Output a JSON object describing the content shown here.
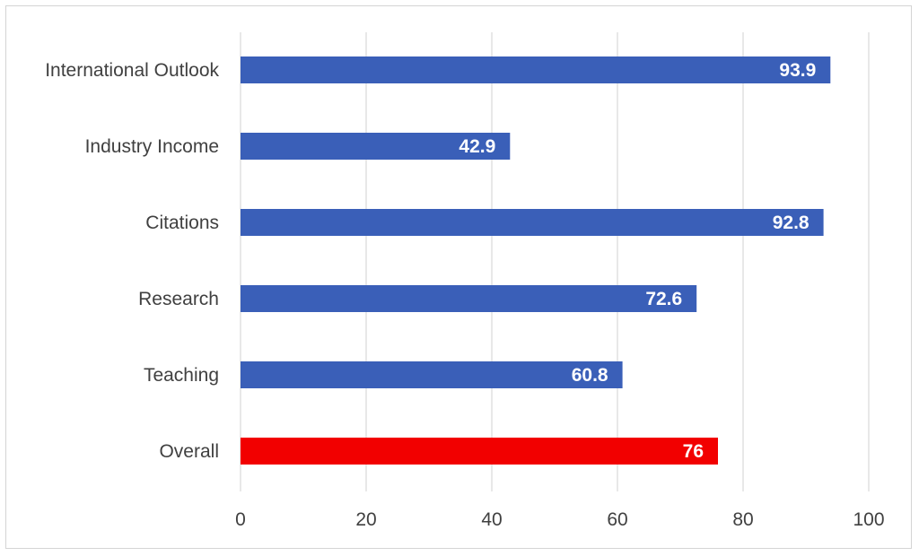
{
  "chart_data": {
    "type": "bar",
    "orientation": "horizontal",
    "categories": [
      "International Outlook",
      "Industry Income",
      "Citations",
      "Research",
      "Teaching",
      "Overall"
    ],
    "values": [
      93.9,
      42.9,
      92.8,
      72.6,
      60.8,
      76
    ],
    "data_labels": [
      "93.9",
      "42.9",
      "92.8",
      "72.6",
      "60.8",
      "76"
    ],
    "bar_colors": [
      "#3a5fb8",
      "#3a5fb8",
      "#3a5fb8",
      "#3a5fb8",
      "#3a5fb8",
      "#f20000"
    ],
    "x_ticks": [
      "0",
      "20",
      "40",
      "60",
      "80",
      "100"
    ],
    "xlim": [
      0,
      100
    ],
    "grid": true,
    "legend": "none"
  }
}
